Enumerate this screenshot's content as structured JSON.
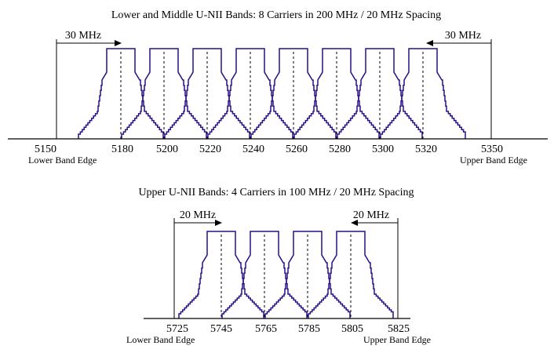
{
  "colors": {
    "carrier": "#2a0e86",
    "axis": "#000000",
    "background": "#ffffff"
  },
  "panels": [
    {
      "title": "Lower and Middle U-NII Bands: 8 Carriers in 200 MHz / 20 MHz Spacing",
      "band_edges": [
        5150,
        5350
      ],
      "ticks": [
        "5150",
        "5180",
        "5200",
        "5220",
        "5240",
        "5260",
        "5280",
        "5300",
        "5320",
        "5350"
      ],
      "carrier_centers": [
        5180,
        5200,
        5220,
        5240,
        5260,
        5280,
        5300,
        5320
      ],
      "lower_edge_label": "Lower Band Edge",
      "upper_edge_label": "Upper Band Edge",
      "left_spacing_label": "30 MHz",
      "right_spacing_label": "30 MHz"
    },
    {
      "title": "Upper U-NII Bands: 4 Carriers in 100 MHz / 20 MHz Spacing",
      "band_edges": [
        5725,
        5825
      ],
      "ticks": [
        "5725",
        "5745",
        "5765",
        "5785",
        "5805",
        "5825"
      ],
      "carrier_centers": [
        5745,
        5765,
        5785,
        5805
      ],
      "lower_edge_label": "Lower Band Edge",
      "upper_edge_label": "Upper Band Edge",
      "left_spacing_label": "20 MHz",
      "right_spacing_label": "20 MHz"
    }
  ]
}
